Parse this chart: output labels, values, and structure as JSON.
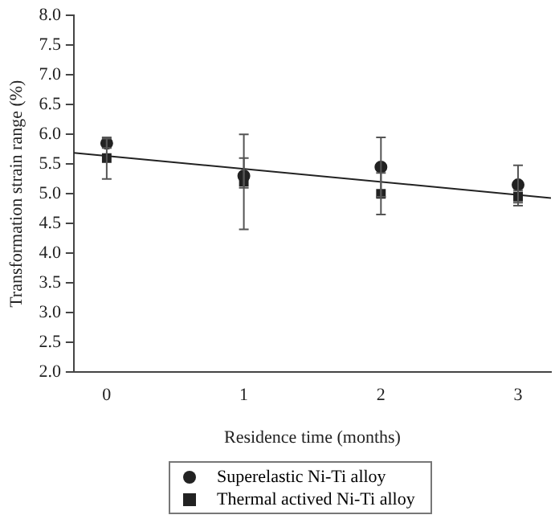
{
  "chart_data": {
    "type": "scatter",
    "xlabel": "Residence time (months)",
    "ylabel": "Transformation strain range (%)",
    "x": [
      0,
      1,
      2,
      3
    ],
    "xlim": [
      -0.24,
      3.24
    ],
    "xticks": [
      0,
      1,
      2,
      3
    ],
    "ylim": [
      2.0,
      8.0
    ],
    "yticks": [
      {
        "value": 2,
        "label": "2.0"
      },
      2.5,
      {
        "value": 3,
        "label": "3.0"
      },
      3.5,
      {
        "value": 4,
        "label": "4.0"
      },
      4.5,
      {
        "value": 5,
        "label": "5.0"
      },
      5.5,
      {
        "value": 6,
        "label": "6.0"
      },
      6.5,
      {
        "value": 7,
        "label": "7.0"
      },
      7.5,
      {
        "value": 8,
        "label": "8.0"
      }
    ],
    "grid": false,
    "legend": "bottom",
    "series": [
      {
        "name": "Superelastic Ni-Ti alloy",
        "color": "#222222",
        "marker": "circle",
        "values": [
          5.85,
          5.3,
          5.45,
          5.15
        ],
        "errors": [
          0.08,
          [
            5.1,
            5.6
          ],
          [
            4.95,
            5.95
          ],
          [
            4.85,
            5.48
          ]
        ]
      },
      {
        "name": "Thermal actived Ni-Ti alloy",
        "color": "#222222",
        "marker": "square",
        "values": [
          5.6,
          5.2,
          5.0,
          4.95
        ],
        "errors": [
          [
            5.25,
            5.95
          ],
          [
            4.4,
            6.0
          ],
          [
            4.65,
            5.35
          ],
          [
            4.8,
            5.05
          ]
        ]
      },
      {
        "type": "line",
        "color": "#222222",
        "marker": "none",
        "x": [
          -0.24,
          3.24
        ],
        "values": [
          5.69,
          4.93
        ]
      }
    ]
  }
}
